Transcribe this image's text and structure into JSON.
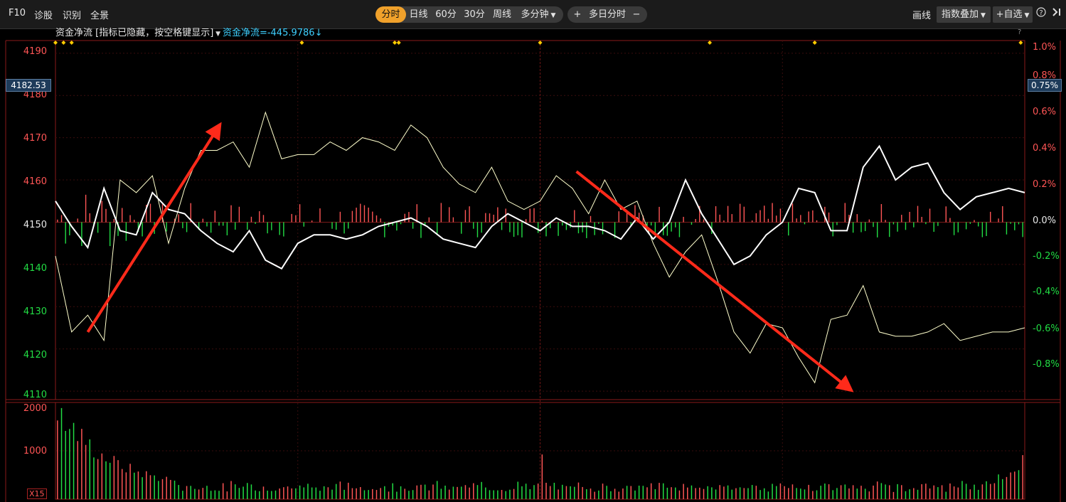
{
  "toolbar": {
    "f10": "F10",
    "diagnose": "诊股",
    "identify": "识别",
    "panorama": "全景",
    "periods": [
      "分时",
      "日线",
      "60分",
      "30分",
      "周线",
      "多分钟"
    ],
    "active_period": "分时",
    "multi_day_plus": "+",
    "multi_day": "多日分时",
    "multi_day_minus": "−",
    "draw": "画线",
    "index_overlay": "指数叠加",
    "watchlist": "+自选",
    "help_icon": "help-circle-icon",
    "collapse_icon": "collapse-right-icon"
  },
  "info_bar": {
    "indicator_label": "资金净流 [指标已隐藏，按空格键显示]",
    "indicator_value": "资金净流=-445.9786",
    "arrow": "↓",
    "help": "?"
  },
  "price_axis": {
    "labels": [
      "4190",
      "4180",
      "4170",
      "4160",
      "4150",
      "4140",
      "4130",
      "4120",
      "4110"
    ],
    "current": "4182.53"
  },
  "pct_axis": {
    "labels": [
      "1.0%",
      "0.8%",
      "0.6%",
      "0.4%",
      "0.2%",
      "0.0%",
      "-0.2%",
      "-0.4%",
      "-0.6%",
      "-0.8%"
    ],
    "current": "0.75%"
  },
  "volume_axis": {
    "labels": [
      "2000",
      "1000"
    ],
    "multiplier": "X15"
  },
  "colors": {
    "up": "#ff5555",
    "down": "#22dd44",
    "line_main": "#ffffff",
    "line_avg": "#ffffcc",
    "accent": "#f0a12b",
    "annotation": "#ff2a1a"
  },
  "chart_data": {
    "type": "line",
    "title": "",
    "ylim": [
      4108,
      4193
    ],
    "pct_range": [
      "-0.8%",
      "1.0%"
    ],
    "series": [
      {
        "x": [
          0,
          4,
          8,
          12,
          16,
          20,
          24,
          28,
          32,
          36,
          40,
          44,
          48,
          52,
          56,
          60,
          64,
          68,
          72,
          76,
          80,
          84,
          88,
          92,
          96,
          100,
          104,
          108,
          112,
          116,
          120,
          124,
          128,
          132,
          136,
          140,
          144,
          148,
          152,
          156,
          160,
          164,
          168,
          172,
          176,
          180,
          184,
          188,
          192,
          196,
          200,
          204,
          208,
          212,
          216,
          220,
          224,
          228,
          232,
          236,
          240
        ],
        "values": [
          4142,
          4124,
          4128,
          4122,
          4160,
          4157,
          4161,
          4145,
          4158,
          4167,
          4167,
          4169,
          4163,
          4176,
          4165,
          4166,
          4166,
          4169,
          4167,
          4170,
          4169,
          4167,
          4173,
          4170,
          4163,
          4159,
          4157,
          4163,
          4155,
          4153,
          4155,
          4161,
          4158,
          4152,
          4160,
          4153,
          4155,
          4145,
          4137,
          4143,
          4147,
          4136,
          4124,
          4119,
          4126,
          4125,
          4118,
          4112,
          4127,
          4128,
          4135,
          4124,
          4123,
          4123,
          4124,
          4126,
          4122,
          4123,
          4124,
          4124,
          4125
        ]
      },
      {
        "x": [
          0,
          4,
          8,
          12,
          16,
          20,
          24,
          28,
          32,
          36,
          40,
          44,
          48,
          52,
          56,
          60,
          64,
          68,
          72,
          76,
          80,
          84,
          88,
          92,
          96,
          100,
          104,
          108,
          112,
          116,
          120,
          124,
          128,
          132,
          136,
          140,
          144,
          148,
          152,
          156,
          160,
          164,
          168,
          172,
          176,
          180,
          184,
          188,
          192,
          196,
          200,
          204,
          208,
          212,
          216,
          220,
          224,
          228,
          232,
          236,
          240
        ],
        "values": [
          4155,
          4149,
          4144,
          4158,
          4148,
          4147,
          4157,
          4153,
          4152,
          4148,
          4145,
          4143,
          4148,
          4141,
          4139,
          4145,
          4147,
          4147,
          4146,
          4147,
          4149,
          4150,
          4151,
          4149,
          4146,
          4145,
          4144,
          4149,
          4152,
          4150,
          4148,
          4151,
          4149,
          4149,
          4148,
          4146,
          4151,
          4146,
          4150,
          4160,
          4152,
          4146,
          4140,
          4142,
          4147,
          4150,
          4158,
          4157,
          4148,
          4148,
          4163,
          4168,
          4160,
          4163,
          4164,
          4157,
          4153,
          4156,
          4157,
          4158,
          4157
        ]
      }
    ]
  }
}
